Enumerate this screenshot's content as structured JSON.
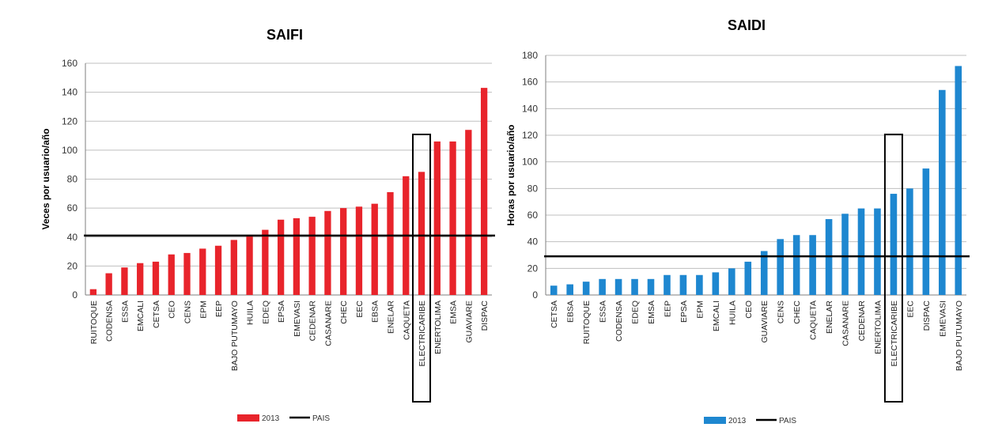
{
  "chart_data": [
    {
      "type": "bar",
      "title": "SAIFI",
      "ylabel": "Veces por usuario/año",
      "ylim": [
        0,
        160
      ],
      "yticks": [
        0,
        20,
        40,
        60,
        80,
        100,
        120,
        140,
        160
      ],
      "grid": true,
      "categories": [
        "RUITOQUE",
        "CODENSA",
        "ESSA",
        "EMCALI",
        "CETSA",
        "CEO",
        "CENS",
        "EPM",
        "EEP",
        "BAJO PUTUMAYO",
        "HUILA",
        "EDEQ",
        "EPSA",
        "EMEVASI",
        "CEDENAR",
        "CASANARE",
        "CHEC",
        "EEC",
        "EBSA",
        "ENELAR",
        "CAQUETA",
        "ELECTRICARIBE",
        "ENERTOLIMA",
        "EMSA",
        "GUAVIARE",
        "DISPAC"
      ],
      "series": [
        {
          "name": "2013",
          "color": "#e8242b",
          "values": [
            4,
            15,
            19,
            22,
            23,
            28,
            29,
            32,
            34,
            38,
            41,
            45,
            52,
            53,
            54,
            58,
            60,
            61,
            63,
            71,
            82,
            85,
            106,
            106,
            114,
            143
          ]
        }
      ],
      "reference_line": {
        "name": "PAIS",
        "value": 41,
        "color": "#000000"
      },
      "highlight_category": "ELECTRICARIBE",
      "legend": {
        "position": "bottom-center",
        "entries": [
          "2013",
          "PAIS"
        ]
      }
    },
    {
      "type": "bar",
      "title": "SAIDI",
      "ylabel": "Horas por usuario/año",
      "ylim": [
        0,
        180
      ],
      "yticks": [
        0,
        20,
        40,
        60,
        80,
        100,
        120,
        140,
        160,
        180
      ],
      "grid": true,
      "categories": [
        "CETSA",
        "EBSA",
        "RUITOQUE",
        "ESSA",
        "CODENSA",
        "EDEQ",
        "EMSA",
        "EEP",
        "EPSA",
        "EPM",
        "EMCALI",
        "HUILA",
        "CEO",
        "GUAVIARE",
        "CENS",
        "CHEC",
        "CAQUETA",
        "ENELAR",
        "CASANARE",
        "CEDENAR",
        "ENERTOLIMA",
        "ELECTRICARIBE",
        "EEC",
        "DISPAC",
        "EMEVASI",
        "BAJO PUTUMAYO"
      ],
      "series": [
        {
          "name": "2013",
          "color": "#1e87d0",
          "values": [
            7,
            8,
            10,
            12,
            12,
            12,
            12,
            15,
            15,
            15,
            17,
            20,
            25,
            33,
            42,
            45,
            45,
            57,
            61,
            65,
            65,
            76,
            80,
            95,
            154,
            172
          ]
        }
      ],
      "reference_line": {
        "name": "PAIS",
        "value": 29,
        "color": "#000000"
      },
      "highlight_category": "ELECTRICARIBE",
      "legend": {
        "position": "bottom-center",
        "entries": [
          "2013",
          "PAIS"
        ]
      }
    }
  ]
}
